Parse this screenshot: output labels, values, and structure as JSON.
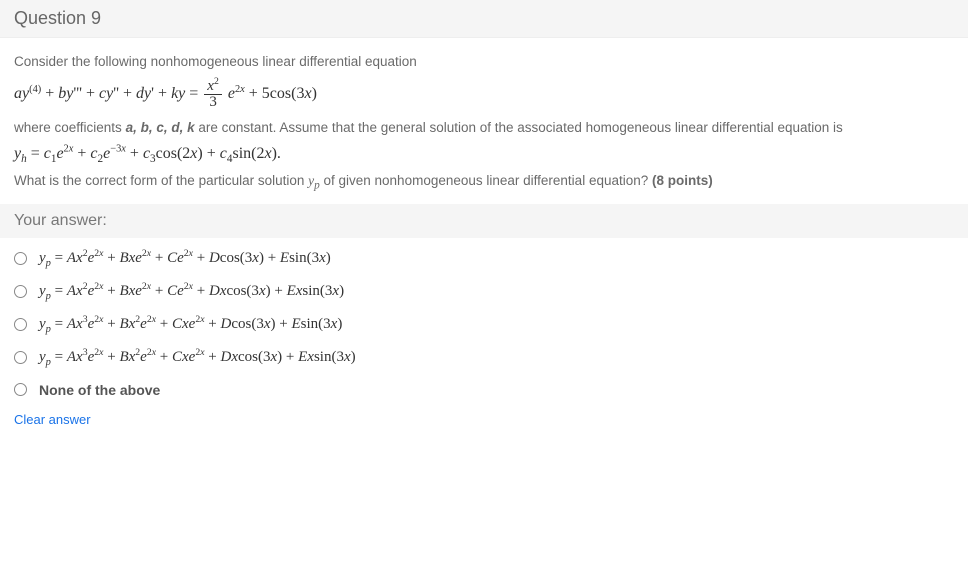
{
  "header": {
    "title": "Question 9"
  },
  "body": {
    "intro": "Consider the following nonhomogeneous linear differential equation",
    "coeffs_line_pre": "where coefficients ",
    "coeffs_vars": "a, b, c, d, k",
    "coeffs_line_post": " are constant. Assume that the general solution of the associated homogeneous linear differential equation is",
    "ask_pre": "What is the correct form of the particular solution ",
    "ask_yp": "y",
    "ask_sub": "p",
    "ask_post": " of given nonhomogeneous linear differential equation? ",
    "points": "(8 points)"
  },
  "answer_section": {
    "label": "Your answer:"
  },
  "options": {
    "none_label": "None of the above"
  },
  "footer": {
    "clear": "Clear answer"
  },
  "colors": {
    "header_bg": "#f5f5f5",
    "text": "#555555",
    "link": "#1a73e8",
    "eq": "#333333"
  }
}
